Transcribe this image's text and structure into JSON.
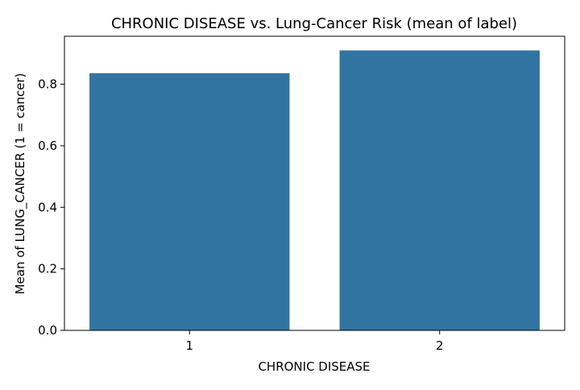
{
  "chart_data": {
    "type": "bar",
    "title": "CHRONIC DISEASE vs. Lung-Cancer Risk (mean of label)",
    "xlabel": "CHRONIC DISEASE",
    "ylabel": "Mean of LUNG_CANCER (1 = cancer)",
    "categories": [
      "1",
      "2"
    ],
    "values": [
      0.836,
      0.91
    ],
    "ylim": [
      0,
      0.956
    ],
    "yticks": [
      "0.0",
      "0.2",
      "0.4",
      "0.6",
      "0.8"
    ],
    "yticks_values": [
      0,
      0.2,
      0.4,
      0.6,
      0.8
    ],
    "grid": false,
    "legend": "none",
    "bar_color": "#3274a1"
  }
}
